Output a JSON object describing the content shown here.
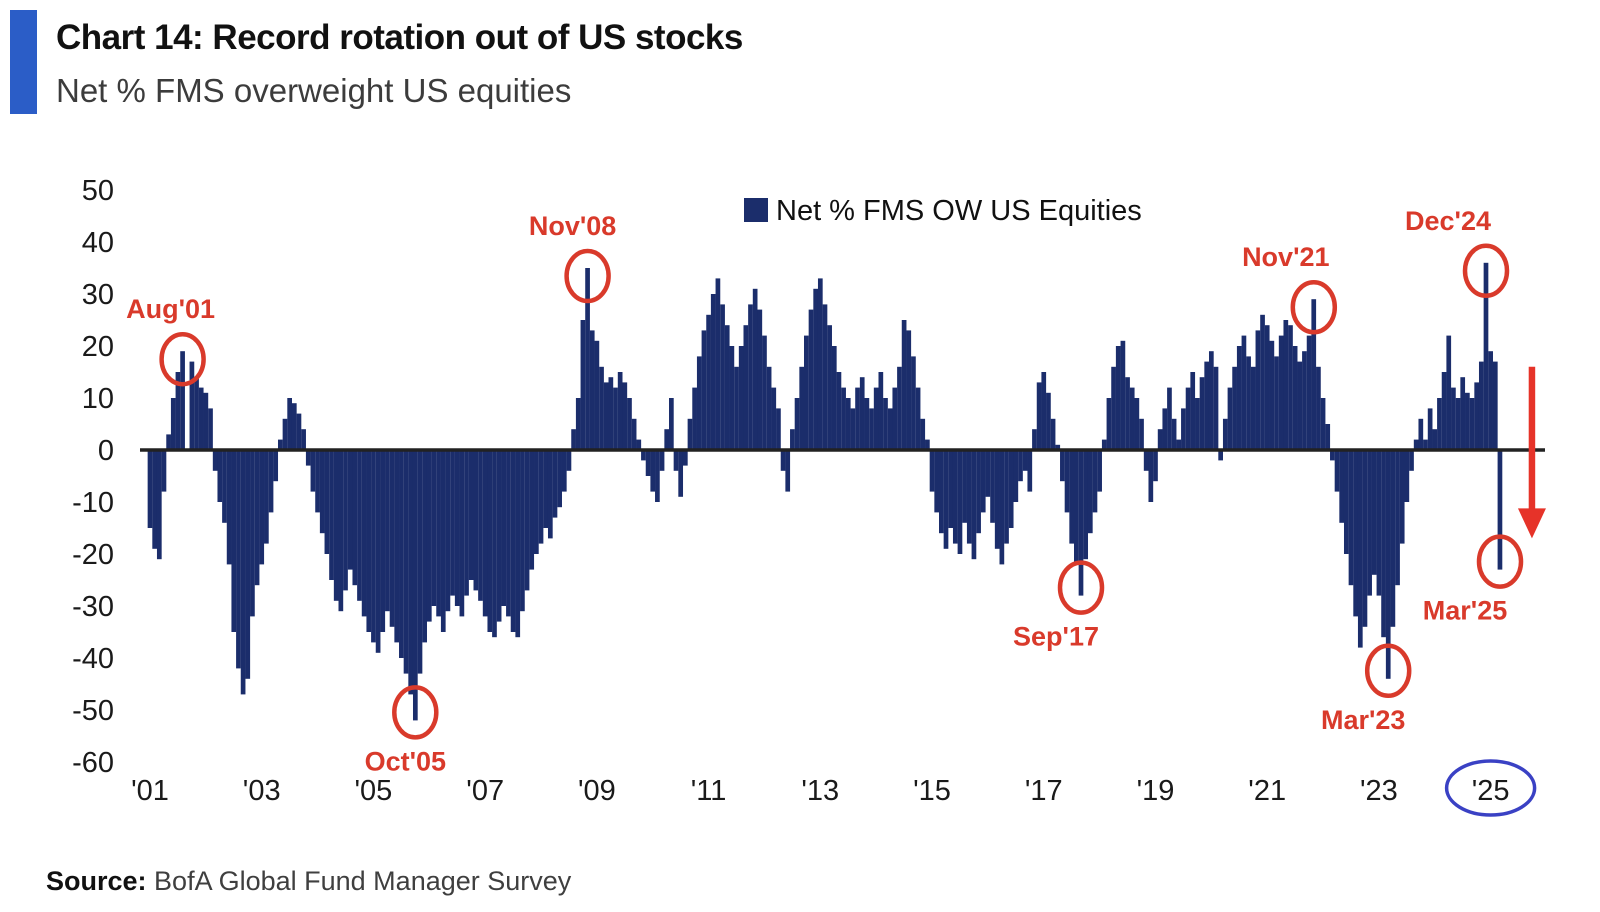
{
  "header": {
    "title": "Chart 14: Record rotation out of US stocks",
    "subtitle": "Net % FMS overweight US equities",
    "accent_color": "#2b5dc7"
  },
  "chart_data": {
    "type": "bar",
    "title": "Chart 14: Record rotation out of US stocks",
    "subtitle": "Net % FMS overweight US equities",
    "legend": "Net % FMS OW US Equities",
    "legend_position": "top-center",
    "xlabel": "",
    "ylabel": "Net % FMS overweight US equities",
    "grid": false,
    "ylim": [
      -60,
      50
    ],
    "yticks": [
      50,
      40,
      30,
      20,
      10,
      0,
      -10,
      -20,
      -30,
      -40,
      -50,
      -60
    ],
    "x_start": "2001-01",
    "x_end": "2025-03",
    "x_tick_labels": [
      "'01",
      "'03",
      "'05",
      "'07",
      "'09",
      "'11",
      "'13",
      "'15",
      "'17",
      "'19",
      "'21",
      "'23",
      "'25"
    ],
    "x_tick_month_step": 24,
    "circled_x_label": "'25",
    "bar_color": "#1b2d6b",
    "annotation_color": "#d93a2b",
    "axis_color": "#222222",
    "x_label_circle_color": "#3a41c4",
    "series_by_year": [
      {
        "year": 2001,
        "values": [
          -15,
          -19,
          -21,
          -8,
          3,
          10,
          15,
          19,
          0,
          17,
          14,
          12
        ]
      },
      {
        "year": 2002,
        "values": [
          11,
          8,
          -4,
          -10,
          -14,
          -22,
          -35,
          -42,
          -47,
          -44,
          -32,
          -26
        ]
      },
      {
        "year": 2003,
        "values": [
          -22,
          -18,
          -12,
          -6,
          2,
          6,
          10,
          9,
          7,
          4,
          -3,
          -8
        ]
      },
      {
        "year": 2004,
        "values": [
          -12,
          -16,
          -20,
          -25,
          -29,
          -31,
          -27,
          -23,
          -26,
          -29,
          -32,
          -35
        ]
      },
      {
        "year": 2005,
        "values": [
          -37,
          -39,
          -35,
          -31,
          -34,
          -37,
          -40,
          -43,
          -47,
          -52,
          -43,
          -37
        ]
      },
      {
        "year": 2006,
        "values": [
          -33,
          -30,
          -32,
          -35,
          -31,
          -28,
          -30,
          -32,
          -28,
          -25,
          -27,
          -29
        ]
      },
      {
        "year": 2007,
        "values": [
          -32,
          -35,
          -36,
          -33,
          -30,
          -32,
          -35,
          -36,
          -31,
          -27,
          -23,
          -20
        ]
      },
      {
        "year": 2008,
        "values": [
          -18,
          -15,
          -17,
          -13,
          -11,
          -8,
          -4,
          4,
          10,
          25,
          35,
          23
        ]
      },
      {
        "year": 2009,
        "values": [
          21,
          16,
          13,
          14,
          12,
          15,
          13,
          10,
          6,
          2,
          -2,
          -5
        ]
      },
      {
        "year": 2010,
        "values": [
          -8,
          -10,
          -4,
          4,
          10,
          -4,
          -9,
          -3,
          6,
          12,
          18,
          23
        ]
      },
      {
        "year": 2011,
        "values": [
          26,
          30,
          33,
          28,
          24,
          20,
          16,
          20,
          24,
          28,
          31,
          27
        ]
      },
      {
        "year": 2012,
        "values": [
          22,
          16,
          12,
          8,
          -4,
          -8,
          4,
          10,
          16,
          22,
          27,
          31
        ]
      },
      {
        "year": 2013,
        "values": [
          33,
          28,
          24,
          20,
          15,
          12,
          10,
          8,
          12,
          14,
          10,
          8
        ]
      },
      {
        "year": 2014,
        "values": [
          12,
          15,
          10,
          8,
          12,
          16,
          25,
          23,
          18,
          12,
          6,
          2
        ]
      },
      {
        "year": 2015,
        "values": [
          -8,
          -12,
          -16,
          -19,
          -15,
          -18,
          -20,
          -14,
          -18,
          -21,
          -16,
          -12
        ]
      },
      {
        "year": 2016,
        "values": [
          -9,
          -14,
          -19,
          -22,
          -18,
          -15,
          -10,
          -6,
          -4,
          -8,
          4,
          13
        ]
      },
      {
        "year": 2017,
        "values": [
          15,
          11,
          6,
          1,
          -6,
          -12,
          -18,
          -22,
          -28,
          -21,
          -16,
          -12
        ]
      },
      {
        "year": 2018,
        "values": [
          -8,
          2,
          10,
          16,
          20,
          21,
          14,
          12,
          10,
          6,
          -4,
          -10
        ]
      },
      {
        "year": 2019,
        "values": [
          -6,
          4,
          8,
          12,
          6,
          2,
          8,
          12,
          15,
          10,
          14,
          17
        ]
      },
      {
        "year": 2020,
        "values": [
          19,
          16,
          -2,
          6,
          12,
          16,
          20,
          22,
          18,
          16,
          23,
          26
        ]
      },
      {
        "year": 2021,
        "values": [
          24,
          21,
          18,
          22,
          25,
          24,
          20,
          17,
          19,
          22,
          29,
          16
        ]
      },
      {
        "year": 2022,
        "values": [
          10,
          5,
          -2,
          -8,
          -14,
          -20,
          -26,
          -32,
          -38,
          -34,
          -28,
          -24
        ]
      },
      {
        "year": 2023,
        "values": [
          -28,
          -36,
          -44,
          -34,
          -26,
          -18,
          -10,
          -4,
          2,
          6,
          2,
          8
        ]
      },
      {
        "year": 2024,
        "values": [
          4,
          10,
          15,
          22,
          12,
          10,
          14,
          11,
          10,
          13,
          17,
          36
        ]
      },
      {
        "year": 2025,
        "values": [
          19,
          17,
          -23
        ]
      }
    ],
    "annotations": [
      {
        "label": "Aug'01",
        "month_index": 7,
        "value": 19,
        "label_side": "above",
        "label_dx": -12
      },
      {
        "label": "Oct'05",
        "month_index": 57,
        "value": -52,
        "label_side": "below",
        "label_dx": -10
      },
      {
        "label": "Nov'08",
        "month_index": 94,
        "value": 35,
        "label_side": "above",
        "label_dx": -15
      },
      {
        "label": "Sep'17",
        "month_index": 200,
        "value": -28,
        "label_side": "below",
        "label_dx": -25
      },
      {
        "label": "Nov'21",
        "month_index": 250,
        "value": 29,
        "label_side": "above",
        "label_dx": -28
      },
      {
        "label": "Mar'23",
        "month_index": 266,
        "value": -44,
        "label_side": "below",
        "label_dx": -25
      },
      {
        "label": "Dec'24",
        "month_index": 287,
        "value": 36,
        "label_side": "above",
        "label_dx": -38
      },
      {
        "label": "Mar'25",
        "month_index": 290,
        "value": -23,
        "label_side": "below",
        "label_dx": -35
      }
    ],
    "arrow": {
      "direction": "down",
      "color": "#e63329",
      "from_value": 16,
      "to_value": -17,
      "after_month_index": 290
    }
  },
  "source": {
    "label": "Source:",
    "text": "BofA Global Fund Manager Survey"
  }
}
